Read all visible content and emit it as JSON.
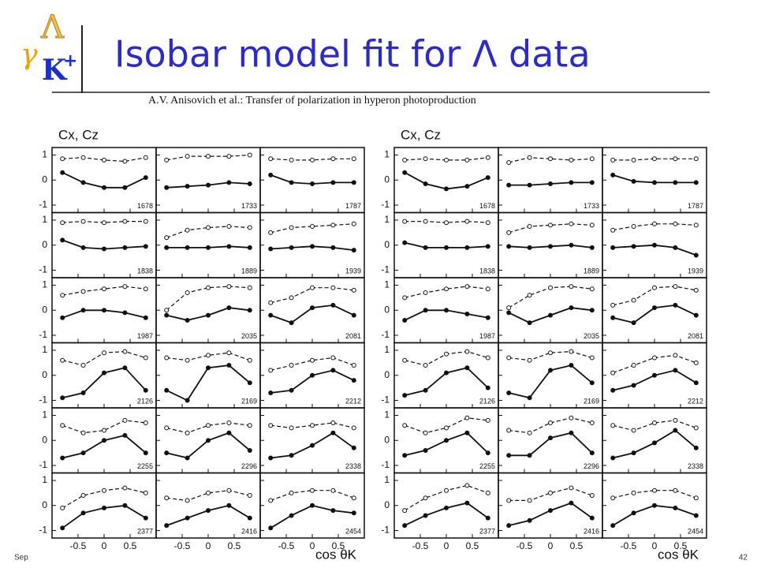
{
  "logo": {
    "gamma": "γ",
    "kaon": "K",
    "plus": "+",
    "lambda": "Λ"
  },
  "title": "Isobar model fit for Λ data",
  "caption": "A.V. Anisovich et al.: Transfer of polarization in hyperon photoproduction",
  "footer": {
    "left": "Sep",
    "page": "42"
  },
  "chart_data": [
    {
      "type": "line",
      "ylabel": "Cx, Cz",
      "xlabel": "cos θK",
      "xlim": [
        -1,
        1
      ],
      "ylim": [
        -1.3,
        1.3
      ],
      "xticks": [
        -0.5,
        0,
        0.5
      ],
      "yticks": [
        1,
        0,
        -1
      ],
      "x": [
        -0.8,
        -0.4,
        0,
        0.4,
        0.8
      ],
      "panels": [
        {
          "label": "1678",
          "series": [
            {
              "style": "dashed",
              "values": [
                0.85,
                0.9,
                0.8,
                0.75,
                0.9
              ]
            },
            {
              "style": "solid",
              "values": [
                0.3,
                -0.1,
                -0.3,
                -0.3,
                0.1
              ]
            }
          ]
        },
        {
          "label": "1733",
          "series": [
            {
              "style": "dashed",
              "values": [
                0.8,
                0.95,
                0.95,
                0.95,
                1
              ]
            },
            {
              "style": "solid",
              "values": [
                -0.3,
                -0.25,
                -0.2,
                -0.1,
                -0.15
              ]
            }
          ]
        },
        {
          "label": "1787",
          "series": [
            {
              "style": "dashed",
              "values": [
                0.85,
                0.8,
                0.8,
                0.85,
                0.85
              ]
            },
            {
              "style": "solid",
              "values": [
                0.2,
                -0.1,
                -0.15,
                -0.1,
                -0.1
              ]
            }
          ]
        },
        {
          "label": "1838",
          "series": [
            {
              "style": "dashed",
              "values": [
                0.9,
                0.95,
                0.9,
                0.95,
                0.95
              ]
            },
            {
              "style": "solid",
              "values": [
                0.2,
                -0.1,
                -0.15,
                -0.1,
                -0.05
              ]
            }
          ]
        },
        {
          "label": "1889",
          "series": [
            {
              "style": "dashed",
              "values": [
                0.3,
                0.6,
                0.7,
                0.75,
                0.7
              ]
            },
            {
              "style": "solid",
              "values": [
                -0.1,
                -0.1,
                -0.1,
                -0.05,
                -0.1
              ]
            }
          ]
        },
        {
          "label": "1939",
          "series": [
            {
              "style": "dashed",
              "values": [
                0.5,
                0.7,
                0.75,
                0.8,
                0.85
              ]
            },
            {
              "style": "solid",
              "values": [
                -0.15,
                -0.1,
                -0.05,
                -0.1,
                -0.2
              ]
            }
          ]
        },
        {
          "label": "1987",
          "series": [
            {
              "style": "dashed",
              "values": [
                0.6,
                0.75,
                0.85,
                0.95,
                0.85
              ]
            },
            {
              "style": "solid",
              "values": [
                -0.3,
                0,
                0,
                -0.1,
                -0.3
              ]
            }
          ]
        },
        {
          "label": "2035",
          "series": [
            {
              "style": "dashed",
              "values": [
                0,
                0.7,
                0.9,
                0.95,
                0.9
              ]
            },
            {
              "style": "solid",
              "values": [
                -0.2,
                -0.4,
                -0.2,
                0.1,
                0
              ]
            }
          ]
        },
        {
          "label": "2081",
          "series": [
            {
              "style": "dashed",
              "values": [
                0.3,
                0.5,
                0.9,
                0.9,
                0.8
              ]
            },
            {
              "style": "solid",
              "values": [
                -0.2,
                -0.5,
                0.1,
                0.2,
                -0.2
              ]
            }
          ]
        },
        {
          "label": "2126",
          "series": [
            {
              "style": "dashed",
              "values": [
                0.6,
                0.4,
                0.9,
                0.95,
                0.7
              ]
            },
            {
              "style": "solid",
              "values": [
                -0.9,
                -0.7,
                0.1,
                0.3,
                -0.6
              ]
            }
          ]
        },
        {
          "label": "2169",
          "series": [
            {
              "style": "dashed",
              "values": [
                0.7,
                0.6,
                0.8,
                0.9,
                0.6
              ]
            },
            {
              "style": "solid",
              "values": [
                -0.6,
                -1,
                0.3,
                0.4,
                -0.3
              ]
            }
          ]
        },
        {
          "label": "2212",
          "series": [
            {
              "style": "dashed",
              "values": [
                0.2,
                0.4,
                0.6,
                0.7,
                0.4
              ]
            },
            {
              "style": "solid",
              "values": [
                -0.7,
                -0.6,
                0,
                0.2,
                -0.2
              ]
            }
          ]
        },
        {
          "label": "2255",
          "series": [
            {
              "style": "dashed",
              "values": [
                0.6,
                0.3,
                0.4,
                0.8,
                0.7
              ]
            },
            {
              "style": "solid",
              "values": [
                -0.7,
                -0.5,
                0,
                0.2,
                -0.5
              ]
            }
          ]
        },
        {
          "label": "2296",
          "series": [
            {
              "style": "dashed",
              "values": [
                0.5,
                0.3,
                0.6,
                0.7,
                0.6
              ]
            },
            {
              "style": "solid",
              "values": [
                -0.5,
                -0.7,
                0,
                0.3,
                -0.4
              ]
            }
          ]
        },
        {
          "label": "2338",
          "series": [
            {
              "style": "dashed",
              "values": [
                0.6,
                0.5,
                0.6,
                0.7,
                0.5
              ]
            },
            {
              "style": "solid",
              "values": [
                -0.7,
                -0.6,
                -0.2,
                0.3,
                -0.3
              ]
            }
          ]
        },
        {
          "label": "2377",
          "series": [
            {
              "style": "dashed",
              "values": [
                -0.1,
                0.4,
                0.6,
                0.7,
                0.5
              ]
            },
            {
              "style": "solid",
              "values": [
                -0.9,
                -0.3,
                -0.1,
                0,
                -0.5
              ]
            }
          ]
        },
        {
          "label": "2416",
          "series": [
            {
              "style": "dashed",
              "values": [
                0.3,
                0.2,
                0.5,
                0.6,
                0.4
              ]
            },
            {
              "style": "solid",
              "values": [
                -0.8,
                -0.5,
                -0.2,
                0,
                -0.5
              ]
            }
          ]
        },
        {
          "label": "2454",
          "series": [
            {
              "style": "dashed",
              "values": [
                0.2,
                0.5,
                0.6,
                0.6,
                0.3
              ]
            },
            {
              "style": "solid",
              "values": [
                -0.9,
                -0.4,
                0,
                -0.2,
                -0.3
              ]
            }
          ]
        }
      ]
    },
    {
      "type": "line",
      "ylabel": "Cx, Cz",
      "xlabel": "cos θK",
      "xlim": [
        -1,
        1
      ],
      "ylim": [
        -1.3,
        1.3
      ],
      "xticks": [
        -0.5,
        0,
        0.5
      ],
      "yticks": [
        1,
        0,
        -1
      ],
      "x": [
        -0.8,
        -0.4,
        0,
        0.4,
        0.8
      ],
      "panels": [
        {
          "label": "1678",
          "series": [
            {
              "style": "dashed",
              "values": [
                0.8,
                0.85,
                0.8,
                0.8,
                0.9
              ]
            },
            {
              "style": "solid",
              "values": [
                0.3,
                -0.15,
                -0.35,
                -0.25,
                0.1
              ]
            }
          ]
        },
        {
          "label": "1733",
          "series": [
            {
              "style": "dashed",
              "values": [
                0.7,
                0.9,
                0.85,
                0.8,
                0.85
              ]
            },
            {
              "style": "solid",
              "values": [
                -0.2,
                -0.2,
                -0.15,
                -0.1,
                -0.1
              ]
            }
          ]
        },
        {
          "label": "1787",
          "series": [
            {
              "style": "dashed",
              "values": [
                0.8,
                0.8,
                0.85,
                0.85,
                0.85
              ]
            },
            {
              "style": "solid",
              "values": [
                0.2,
                -0.05,
                -0.1,
                -0.1,
                -0.1
              ]
            }
          ]
        },
        {
          "label": "1838",
          "series": [
            {
              "style": "dashed",
              "values": [
                0.95,
                0.95,
                0.9,
                0.95,
                0.9
              ]
            },
            {
              "style": "solid",
              "values": [
                0.1,
                -0.1,
                -0.1,
                -0.1,
                -0.05
              ]
            }
          ]
        },
        {
          "label": "1889",
          "series": [
            {
              "style": "dashed",
              "values": [
                0.5,
                0.75,
                0.8,
                0.85,
                0.8
              ]
            },
            {
              "style": "solid",
              "values": [
                -0.05,
                -0.1,
                -0.05,
                0,
                -0.1
              ]
            }
          ]
        },
        {
          "label": "1939",
          "series": [
            {
              "style": "dashed",
              "values": [
                0.6,
                0.75,
                0.85,
                0.85,
                0.8
              ]
            },
            {
              "style": "solid",
              "values": [
                -0.1,
                -0.05,
                0,
                -0.1,
                -0.4
              ]
            }
          ]
        },
        {
          "label": "1987",
          "series": [
            {
              "style": "dashed",
              "values": [
                0.5,
                0.7,
                0.85,
                0.95,
                0.85
              ]
            },
            {
              "style": "solid",
              "values": [
                -0.4,
                0,
                0,
                -0.15,
                -0.3
              ]
            }
          ]
        },
        {
          "label": "2035",
          "series": [
            {
              "style": "dashed",
              "values": [
                0.1,
                0.6,
                0.9,
                0.95,
                0.85
              ]
            },
            {
              "style": "solid",
              "values": [
                -0.1,
                -0.5,
                -0.2,
                0.1,
                0
              ]
            }
          ]
        },
        {
          "label": "2081",
          "series": [
            {
              "style": "dashed",
              "values": [
                0.2,
                0.4,
                0.9,
                0.95,
                0.8
              ]
            },
            {
              "style": "solid",
              "values": [
                -0.3,
                -0.5,
                0.1,
                0.2,
                -0.2
              ]
            }
          ]
        },
        {
          "label": "2126",
          "series": [
            {
              "style": "dashed",
              "values": [
                0.6,
                0.4,
                0.85,
                0.95,
                0.7
              ]
            },
            {
              "style": "solid",
              "values": [
                -0.8,
                -0.6,
                0.1,
                0.3,
                -0.5
              ]
            }
          ]
        },
        {
          "label": "2169",
          "series": [
            {
              "style": "dashed",
              "values": [
                0.7,
                0.6,
                0.9,
                0.95,
                0.7
              ]
            },
            {
              "style": "solid",
              "values": [
                -0.7,
                -0.9,
                0.2,
                0.4,
                -0.3
              ]
            }
          ]
        },
        {
          "label": "2212",
          "series": [
            {
              "style": "dashed",
              "values": [
                0.1,
                0.4,
                0.7,
                0.8,
                0.5
              ]
            },
            {
              "style": "solid",
              "values": [
                -0.6,
                -0.4,
                0,
                0.2,
                -0.3
              ]
            }
          ]
        },
        {
          "label": "2255",
          "series": [
            {
              "style": "dashed",
              "values": [
                0.6,
                0.3,
                0.5,
                0.9,
                0.8
              ]
            },
            {
              "style": "solid",
              "values": [
                -0.6,
                -0.4,
                0,
                0.3,
                -0.5
              ]
            }
          ]
        },
        {
          "label": "2296",
          "series": [
            {
              "style": "dashed",
              "values": [
                0.4,
                0.3,
                0.7,
                0.9,
                0.7
              ]
            },
            {
              "style": "solid",
              "values": [
                -0.6,
                -0.6,
                0.1,
                0.3,
                -0.5
              ]
            }
          ]
        },
        {
          "label": "2338",
          "series": [
            {
              "style": "dashed",
              "values": [
                0.6,
                0.4,
                0.7,
                0.8,
                0.5
              ]
            },
            {
              "style": "solid",
              "values": [
                -0.7,
                -0.5,
                -0.1,
                0.4,
                -0.3
              ]
            }
          ]
        },
        {
          "label": "2377",
          "series": [
            {
              "style": "dashed",
              "values": [
                -0.2,
                0.3,
                0.6,
                0.8,
                0.5
              ]
            },
            {
              "style": "solid",
              "values": [
                -0.8,
                -0.4,
                -0.1,
                0.1,
                -0.5
              ]
            }
          ]
        },
        {
          "label": "2416",
          "series": [
            {
              "style": "dashed",
              "values": [
                0.2,
                0.2,
                0.5,
                0.7,
                0.4
              ]
            },
            {
              "style": "solid",
              "values": [
                -0.8,
                -0.6,
                -0.2,
                0.1,
                -0.5
              ]
            }
          ]
        },
        {
          "label": "2454",
          "series": [
            {
              "style": "dashed",
              "values": [
                0.3,
                0.5,
                0.6,
                0.6,
                0.3
              ]
            },
            {
              "style": "solid",
              "values": [
                -0.8,
                -0.3,
                0,
                -0.1,
                -0.4
              ]
            }
          ]
        }
      ]
    }
  ]
}
